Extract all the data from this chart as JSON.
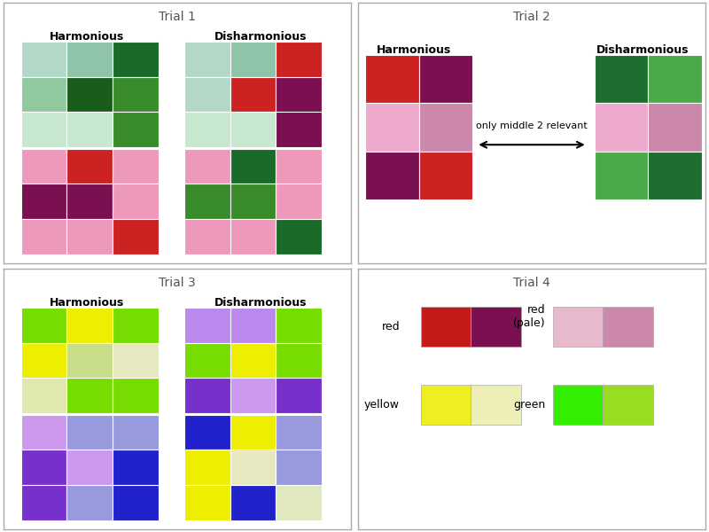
{
  "background": "#ffffff",
  "border_color": "#aaaaaa",
  "trial1": {
    "title": "Trial 1",
    "harm_label": "Harmonious",
    "dish_label": "Disharmonious",
    "grid1_harm": [
      [
        "#b2d8c8",
        "#8ec4a8",
        "#1a6b2a"
      ],
      [
        "#90c8a0",
        "#1a5c1a",
        "#3a8c2a"
      ],
      [
        "#c8e8d0",
        "#c8e8d0",
        "#3a8c2a"
      ]
    ],
    "grid1_dish": [
      [
        "#b2d8c8",
        "#8ec4a8",
        "#cc2222"
      ],
      [
        "#b2d8c8",
        "#cc2222",
        "#7a1050"
      ],
      [
        "#c8e8d0",
        "#c8e8d0",
        "#7a1050"
      ]
    ],
    "grid2_harm": [
      [
        "#ee99bb",
        "#cc2222",
        "#ee99bb"
      ],
      [
        "#7a1050",
        "#7a1050",
        "#ee99bb"
      ],
      [
        "#ee99bb",
        "#ee99bb",
        "#cc2222"
      ]
    ],
    "grid2_dish": [
      [
        "#ee99bb",
        "#1a6b2a",
        "#ee99bb"
      ],
      [
        "#3a8c2a",
        "#3a8c2a",
        "#ee99bb"
      ],
      [
        "#ee99bb",
        "#ee99bb",
        "#1a6b2a"
      ]
    ]
  },
  "trial2": {
    "title": "Trial 2",
    "harm_label": "Harmonious",
    "dish_label": "Disharmonious",
    "arrow_text": "only middle 2 relevant",
    "grid_harm": [
      [
        "#cc2222",
        "#7a1050"
      ],
      [
        "#eeaacc",
        "#cc88aa"
      ],
      [
        "#7a1050",
        "#cc2222"
      ]
    ],
    "grid_dish": [
      [
        "#1e6e30",
        "#4aaa4a"
      ],
      [
        "#eeaacc",
        "#cc88aa"
      ],
      [
        "#4aaa4a",
        "#1e6e30"
      ]
    ]
  },
  "trial3": {
    "title": "Trial 3",
    "harm_label": "Harmonious",
    "dish_label": "Disharmonious",
    "grid1_harm": [
      [
        "#77dd00",
        "#eeee00",
        "#77dd00"
      ],
      [
        "#eeee00",
        "#c8dd88",
        "#e8e8c0"
      ],
      [
        "#e0e8b0",
        "#77dd00",
        "#77dd00"
      ]
    ],
    "grid1_dish": [
      [
        "#bb88ee",
        "#bb88ee",
        "#77dd00"
      ],
      [
        "#77dd00",
        "#eeee00",
        "#77dd00"
      ],
      [
        "#7730cc",
        "#cc99ee",
        "#7730cc"
      ]
    ],
    "grid2_harm": [
      [
        "#cc99ee",
        "#9999dd",
        "#9999dd"
      ],
      [
        "#7730cc",
        "#cc99ee",
        "#2222cc"
      ],
      [
        "#7730cc",
        "#9999dd",
        "#2222cc"
      ]
    ],
    "grid2_dish": [
      [
        "#2222cc",
        "#eeee00",
        "#9999dd"
      ],
      [
        "#eeee00",
        "#e8e8c0",
        "#9999dd"
      ],
      [
        "#eeee00",
        "#2222cc",
        "#e0e8c0"
      ]
    ]
  },
  "trial4": {
    "title": "Trial 4",
    "red_label": "red",
    "red_pale_label": "red\n(pale)",
    "yellow_label": "yellow",
    "green_label": "green",
    "red_colors": [
      "#c41a1a",
      "#7a1050"
    ],
    "red_pale_colors": [
      "#e8b8cc",
      "#cc88aa"
    ],
    "yellow_colors": [
      "#eeee22",
      "#eeeeb8"
    ],
    "green_colors": [
      "#33ee00",
      "#99dd22"
    ]
  }
}
